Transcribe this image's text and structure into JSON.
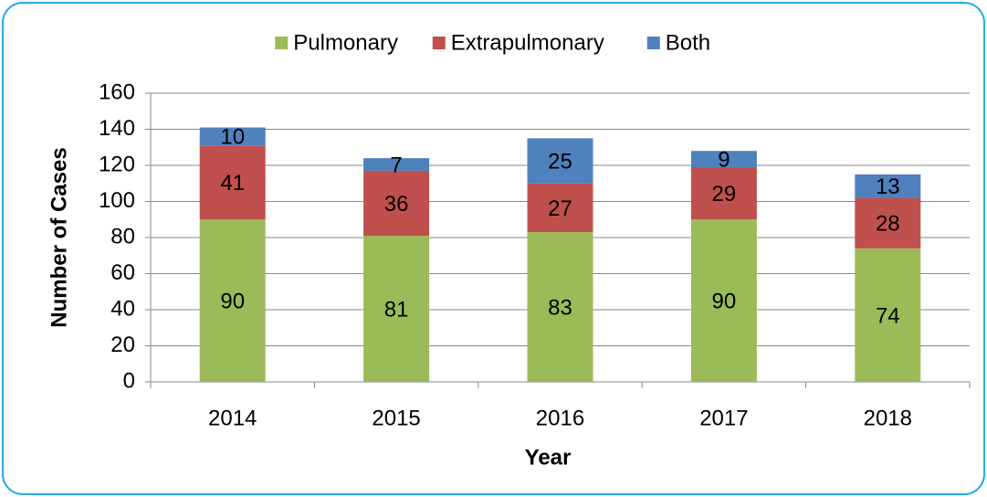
{
  "chart_data": {
    "type": "bar",
    "stacked": true,
    "categories": [
      "2014",
      "2015",
      "2016",
      "2017",
      "2018"
    ],
    "series": [
      {
        "name": "Pulmonary",
        "color": "#9bbb59",
        "values": [
          90,
          81,
          83,
          90,
          74
        ]
      },
      {
        "name": "Extrapulmonary",
        "color": "#c0504d",
        "values": [
          41,
          36,
          27,
          29,
          28
        ]
      },
      {
        "name": "Both",
        "color": "#4f81bd",
        "values": [
          10,
          7,
          25,
          9,
          13
        ]
      }
    ],
    "xlabel": "Year",
    "ylabel": "Number of Cases",
    "ylim": [
      0,
      160
    ],
    "yticks": [
      0,
      20,
      40,
      60,
      80,
      100,
      120,
      140,
      160
    ],
    "grid": true,
    "legend": "top"
  }
}
